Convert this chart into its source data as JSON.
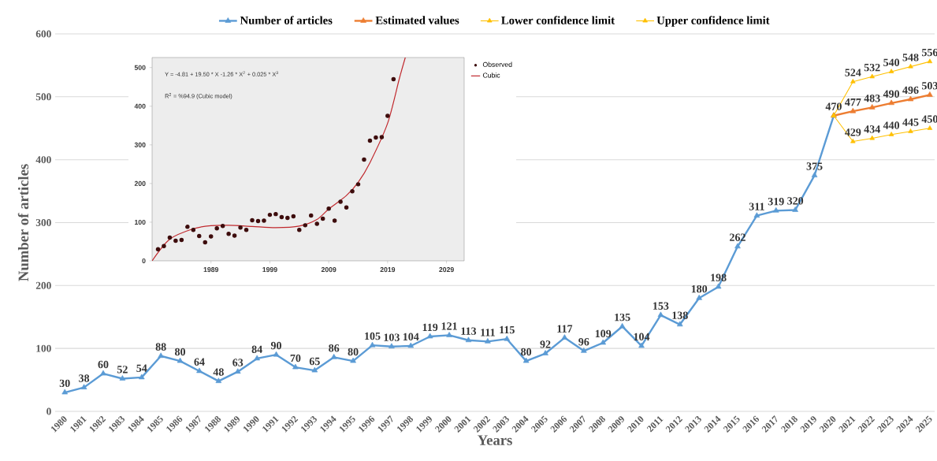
{
  "chart_data": [
    {
      "type": "line",
      "xlabel": "Years",
      "ylabel": "Number of articles",
      "categories": [
        "1980",
        "1981",
        "1982",
        "1983",
        "1984",
        "1985",
        "1986",
        "1987",
        "1988",
        "1989",
        "1990",
        "1991",
        "1992",
        "1993",
        "1994",
        "1995",
        "1996",
        "1997",
        "1998",
        "1999",
        "2000",
        "2001",
        "2002",
        "2003",
        "2004",
        "2005",
        "2006",
        "2007",
        "2008",
        "2009",
        "2010",
        "2011",
        "2012",
        "2013",
        "2014",
        "2015",
        "2016",
        "2017",
        "2018",
        "2019",
        "2020",
        "2021",
        "2022",
        "2023",
        "2024",
        "2025"
      ],
      "ylim": [
        0,
        600
      ],
      "yticks": [
        0,
        100,
        200,
        300,
        400,
        500,
        600
      ],
      "grid": "y",
      "legend": "top",
      "marker": "triangle",
      "series": [
        {
          "name": "Number of articles",
          "color": "#5b9bd5",
          "values": [
            30,
            38,
            60,
            52,
            54,
            88,
            80,
            64,
            48,
            63,
            84,
            90,
            70,
            65,
            86,
            80,
            105,
            103,
            104,
            119,
            121,
            113,
            111,
            115,
            80,
            92,
            117,
            96,
            109,
            135,
            104,
            153,
            138,
            180,
            198,
            262,
            311,
            319,
            320,
            375,
            470,
            null,
            null,
            null,
            null,
            null
          ],
          "value_labels": [
            "30",
            "38",
            "60",
            "52",
            "54",
            "88",
            "80",
            "64",
            "48",
            "63",
            "84",
            "90",
            "70",
            "65",
            "86",
            "80",
            "105",
            "103",
            "104",
            "119",
            "121",
            "113",
            "111",
            "115",
            "80",
            "92",
            "117",
            "96",
            "109",
            "135",
            "104",
            "153",
            "138",
            "180",
            "198",
            "262",
            "311",
            "319",
            "320",
            "375",
            "470",
            null,
            null,
            null,
            null,
            null
          ]
        },
        {
          "name": "Estimated values",
          "color": "#ed7d31",
          "values": [
            null,
            null,
            null,
            null,
            null,
            null,
            null,
            null,
            null,
            null,
            null,
            null,
            null,
            null,
            null,
            null,
            null,
            null,
            null,
            null,
            null,
            null,
            null,
            null,
            null,
            null,
            null,
            null,
            null,
            null,
            null,
            null,
            null,
            null,
            null,
            null,
            null,
            null,
            null,
            null,
            470,
            477,
            483,
            490,
            496,
            503
          ],
          "value_labels": [
            null,
            null,
            null,
            null,
            null,
            null,
            null,
            null,
            null,
            null,
            null,
            null,
            null,
            null,
            null,
            null,
            null,
            null,
            null,
            null,
            null,
            null,
            null,
            null,
            null,
            null,
            null,
            null,
            null,
            null,
            null,
            null,
            null,
            null,
            null,
            null,
            null,
            null,
            null,
            null,
            null,
            "477",
            "483",
            "490",
            "496",
            "503"
          ]
        },
        {
          "name": "Lower confidence limit",
          "color": "#ffc000",
          "values": [
            null,
            null,
            null,
            null,
            null,
            null,
            null,
            null,
            null,
            null,
            null,
            null,
            null,
            null,
            null,
            null,
            null,
            null,
            null,
            null,
            null,
            null,
            null,
            null,
            null,
            null,
            null,
            null,
            null,
            null,
            null,
            null,
            null,
            null,
            null,
            null,
            null,
            null,
            null,
            null,
            470,
            429,
            434,
            440,
            445,
            450
          ],
          "value_labels": [
            null,
            null,
            null,
            null,
            null,
            null,
            null,
            null,
            null,
            null,
            null,
            null,
            null,
            null,
            null,
            null,
            null,
            null,
            null,
            null,
            null,
            null,
            null,
            null,
            null,
            null,
            null,
            null,
            null,
            null,
            null,
            null,
            null,
            null,
            null,
            null,
            null,
            null,
            null,
            null,
            null,
            "429",
            "434",
            "440",
            "445",
            "450"
          ]
        },
        {
          "name": "Upper confidence limit",
          "color": "#ffc000",
          "values": [
            null,
            null,
            null,
            null,
            null,
            null,
            null,
            null,
            null,
            null,
            null,
            null,
            null,
            null,
            null,
            null,
            null,
            null,
            null,
            null,
            null,
            null,
            null,
            null,
            null,
            null,
            null,
            null,
            null,
            null,
            null,
            null,
            null,
            null,
            null,
            null,
            null,
            null,
            null,
            null,
            470,
            524,
            532,
            540,
            548,
            556
          ],
          "value_labels": [
            null,
            null,
            null,
            null,
            null,
            null,
            null,
            null,
            null,
            null,
            null,
            null,
            null,
            null,
            null,
            null,
            null,
            null,
            null,
            null,
            null,
            null,
            null,
            null,
            null,
            null,
            null,
            null,
            null,
            null,
            null,
            null,
            null,
            null,
            null,
            null,
            null,
            null,
            null,
            null,
            null,
            "524",
            "532",
            "540",
            "548",
            "556"
          ]
        }
      ]
    },
    {
      "type": "scatter",
      "xlim": [
        1979,
        2032
      ],
      "xticks": [
        1989,
        1999,
        2009,
        2019,
        2029
      ],
      "ylim": [
        0,
        526
      ],
      "yticks": [
        0,
        100,
        200,
        300,
        400,
        500
      ],
      "legend": "top right",
      "annotations": [
        "Y = -4.81 + 19.50 * X -1.26 * X$^{2}$ + 0.025 * X$^{3}$",
        "R$^{2}$ = %94.9 (Cubic model)"
      ],
      "series": [
        {
          "name": "Observed",
          "type": "scatter",
          "marker": "circle",
          "color": "#3d0c0c",
          "x": [
            1980,
            1981,
            1982,
            1983,
            1984,
            1985,
            1986,
            1987,
            1988,
            1989,
            1990,
            1991,
            1992,
            1993,
            1994,
            1995,
            1996,
            1997,
            1998,
            1999,
            2000,
            2001,
            2002,
            2003,
            2004,
            2005,
            2006,
            2007,
            2008,
            2009,
            2010,
            2011,
            2012,
            2013,
            2014,
            2015,
            2016,
            2017,
            2018,
            2019,
            2020
          ],
          "values": [
            30,
            38,
            60,
            52,
            54,
            88,
            80,
            64,
            48,
            63,
            84,
            90,
            70,
            65,
            86,
            80,
            105,
            103,
            104,
            119,
            121,
            113,
            111,
            115,
            80,
            92,
            117,
            96,
            109,
            135,
            104,
            153,
            138,
            180,
            198,
            262,
            311,
            319,
            320,
            375,
            470
          ]
        },
        {
          "name": "Cubic",
          "type": "line",
          "marker": "none",
          "color": "#c0282d",
          "x": [
            1979,
            1982,
            1986,
            1989,
            1992,
            1996,
            2000,
            2004,
            2007,
            2009,
            2012,
            2014,
            2016,
            2019,
            2021,
            2022
          ],
          "values": [
            0,
            56,
            83,
            91,
            92,
            89,
            86,
            90,
            107,
            134,
            169,
            203,
            254,
            356,
            472,
            526
          ]
        }
      ]
    }
  ]
}
